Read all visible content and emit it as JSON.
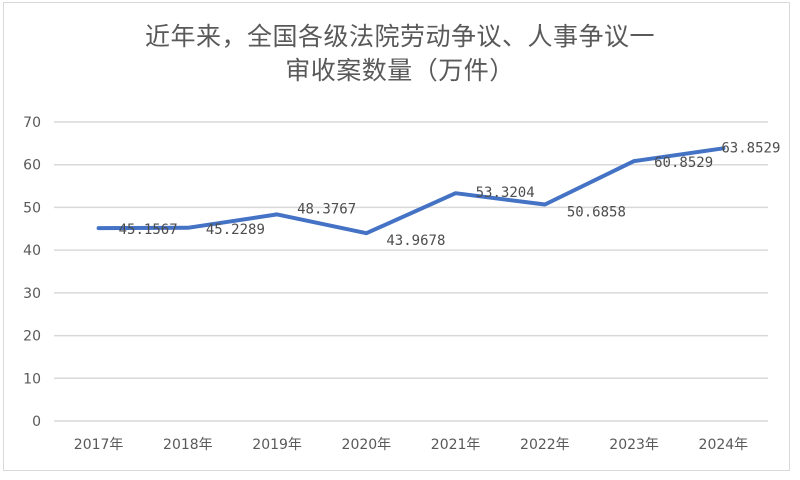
{
  "title": {
    "line1": "近年来，全国各级法院劳动争议、人事争议一",
    "line2": "审收案数量（万件）"
  },
  "colors": {
    "line": "#4472c4",
    "grid": "#d9d9d9",
    "text": "#595959"
  },
  "chart_data": {
    "type": "line",
    "title": "近年来，全国各级法院劳动争议、人事争议一审收案数量（万件）",
    "xlabel": "",
    "ylabel": "",
    "categories": [
      "2017年",
      "2018年",
      "2019年",
      "2020年",
      "2021年",
      "2022年",
      "2023年",
      "2024年"
    ],
    "series": [
      {
        "name": "一审收案数量（万件）",
        "values": [
          45.1567,
          45.2289,
          48.3767,
          43.9678,
          53.3204,
          50.6858,
          60.8529,
          63.8529
        ],
        "labels": [
          "45.1567",
          "45.2289",
          "48.3767",
          "43.9678",
          "53.3204",
          "50.6858",
          "60.8529",
          "63.8529"
        ]
      }
    ],
    "ylim": [
      0,
      70
    ],
    "yticks": [
      0,
      10,
      20,
      30,
      40,
      50,
      60,
      70
    ],
    "grid": true,
    "legend": "none"
  }
}
